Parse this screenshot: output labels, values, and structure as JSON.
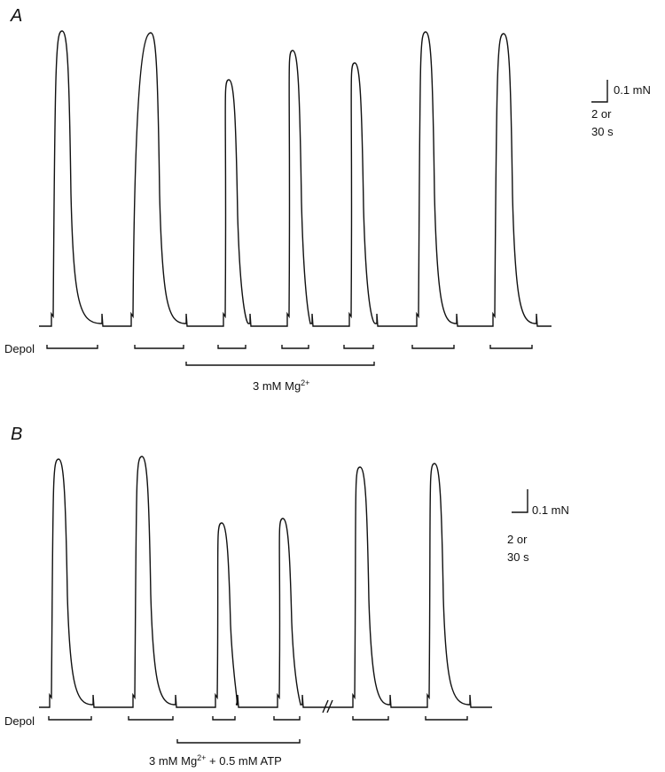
{
  "panels": [
    {
      "label": "A",
      "stimulus_label": "Depol",
      "treatment": {
        "text": "3 mM Mg",
        "sup": "2+"
      },
      "scale_bar": {
        "force": "0.1 mN",
        "time_line1": "2 or",
        "time_line2": "30 s"
      }
    },
    {
      "label": "B",
      "stimulus_label": "Depol",
      "treatment": {
        "text": "3 mM Mg",
        "sup": "2+",
        "rest": " + 0.5 mM ATP"
      },
      "scale_bar": {
        "force": "0.1 mN",
        "time_line1": "2 or",
        "time_line2": "30 s"
      }
    }
  ]
}
